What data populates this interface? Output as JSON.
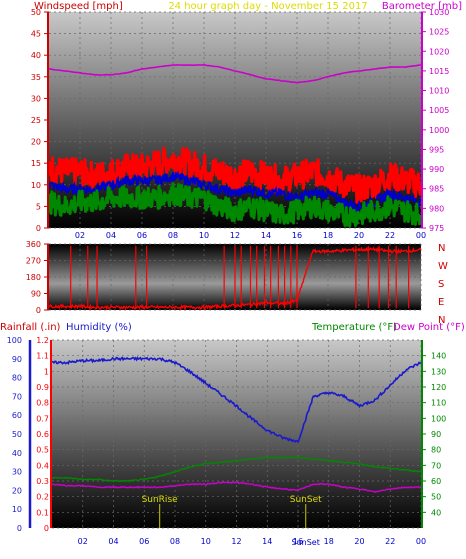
{
  "header": {
    "left_title": "Windspeed [mph]",
    "center_title": "24 hour graph day - November 15 2017",
    "right_title": "Barometer [mb]"
  },
  "colors": {
    "wind_axis": "#cc0000",
    "baro_axis": "#cc00cc",
    "hour_axis": "#0000cc",
    "title_center": "#dddd00",
    "humidity": "#1a1acc",
    "temperature": "#008800",
    "rain": "#ff0000",
    "plot_dark": "#000000",
    "plot_light": "#bdbdbd"
  },
  "chart_data": [
    {
      "id": "wind-barometer",
      "type": "line",
      "x": [
        0,
        1,
        2,
        3,
        4,
        5,
        6,
        7,
        8,
        9,
        10,
        11,
        12,
        13,
        14,
        15,
        16,
        17,
        18,
        19,
        20,
        21,
        22,
        23,
        24
      ],
      "xticks": [
        "02",
        "04",
        "06",
        "08",
        "10",
        "12",
        "14",
        "16",
        "18",
        "20",
        "22",
        "00"
      ],
      "y_left_label": "Windspeed [mph]",
      "y_left_ticks": [
        0,
        5,
        10,
        15,
        20,
        25,
        30,
        35,
        40,
        45,
        50
      ],
      "y_left_range": [
        0,
        50
      ],
      "y_right_label": "Barometer [mb]",
      "y_right_ticks": [
        975,
        980,
        985,
        990,
        995,
        1000,
        1005,
        1010,
        1015,
        1020,
        1025,
        1030
      ],
      "y_right_range": [
        975,
        1030
      ],
      "series": [
        {
          "key": "barometer",
          "axis": "right",
          "color": "#cc00cc",
          "values": [
            1015.5,
            1015,
            1014.5,
            1014,
            1014,
            1014.5,
            1015.5,
            1016,
            1016.5,
            1016.5,
            1016.5,
            1016,
            1015,
            1014,
            1013,
            1012.5,
            1012,
            1012.5,
            1013.5,
            1014.5,
            1015,
            1015.5,
            1016,
            1016,
            1016.5
          ]
        },
        {
          "key": "gust",
          "axis": "left",
          "color": "#ff0000",
          "values": [
            14,
            13,
            13,
            12,
            13,
            14,
            14,
            15,
            16,
            15,
            14,
            13,
            12,
            13,
            12,
            11,
            12,
            13,
            12,
            10,
            9,
            10,
            12,
            11,
            10
          ]
        },
        {
          "key": "wind_avg",
          "axis": "left",
          "color": "#0000cc",
          "values": [
            10,
            9,
            9,
            9,
            10,
            11,
            11,
            11,
            12,
            11,
            10,
            9,
            8,
            9,
            8,
            8,
            7,
            8,
            8,
            6,
            5,
            6,
            8,
            7,
            6
          ]
        },
        {
          "key": "wind_low",
          "axis": "left",
          "color": "#008800",
          "values": [
            6,
            5,
            6,
            6,
            7,
            7,
            7,
            7,
            8,
            7,
            7,
            5,
            4,
            5,
            4,
            3,
            4,
            5,
            4,
            3,
            3,
            4,
            5,
            4,
            3
          ]
        }
      ]
    },
    {
      "id": "wind-direction",
      "type": "line",
      "x": [
        0,
        1,
        2,
        3,
        4,
        5,
        6,
        7,
        8,
        9,
        10,
        11,
        12,
        13,
        14,
        15,
        16,
        17,
        18,
        19,
        20,
        21,
        22,
        23,
        24
      ],
      "xticks": [
        "02",
        "04",
        "06",
        "08",
        "10",
        "12",
        "14",
        "16",
        "18",
        "20",
        "22",
        "00"
      ],
      "y_ticks": [
        0,
        90,
        180,
        270,
        360
      ],
      "y_range": [
        0,
        360
      ],
      "compass": [
        "N",
        "W",
        "S",
        "E",
        "N"
      ],
      "series": [
        {
          "key": "direction",
          "color": "#ff0000",
          "values": [
            20,
            20,
            20,
            15,
            15,
            15,
            15,
            15,
            15,
            15,
            15,
            20,
            25,
            30,
            40,
            35,
            50,
            320,
            320,
            325,
            330,
            330,
            320,
            320,
            330
          ]
        }
      ]
    },
    {
      "id": "rain-humidity-temp",
      "type": "line",
      "x": [
        0,
        1,
        2,
        3,
        4,
        5,
        6,
        7,
        8,
        9,
        10,
        11,
        12,
        13,
        14,
        15,
        16,
        17,
        18,
        19,
        20,
        21,
        22,
        23,
        24
      ],
      "xticks": [
        "02",
        "04",
        "06",
        "08",
        "10",
        "12",
        "14",
        "16",
        "18",
        "20",
        "22",
        "00"
      ],
      "labels": {
        "rainfall": "Rainfall (.in)",
        "humidity": "Humidity (%)",
        "temperature": "Temperature (°F)",
        "dewpoint": "Dew Point (°F)"
      },
      "y_rain_ticks": [
        0,
        0.1,
        0.2,
        0.3,
        0.4,
        0.5,
        0.6,
        0.7,
        0.8,
        0.9,
        1,
        1.1,
        1.2
      ],
      "y_rain_range": [
        0,
        1.2
      ],
      "y_hum_ticks": [
        0,
        10,
        20,
        30,
        40,
        50,
        60,
        70,
        80,
        90,
        100
      ],
      "y_hum_range": [
        0,
        100
      ],
      "y_temp_ticks": [
        40,
        50,
        60,
        70,
        80,
        90,
        100,
        110,
        120,
        130,
        140
      ],
      "y_temp_range": [
        30,
        150
      ],
      "annotations": [
        {
          "key": "sunrise",
          "label": "SunRise",
          "x": 7
        },
        {
          "key": "sunset",
          "label": "SunSet",
          "x": 16.5
        },
        {
          "key": "sunset_axis",
          "label": "SunSet",
          "x": 16.5
        }
      ],
      "series": [
        {
          "key": "humidity",
          "axis": "hum",
          "color": "#1a1acc",
          "values": [
            88,
            88,
            89,
            89,
            90,
            90,
            90,
            90,
            88,
            83,
            77,
            71,
            65,
            58,
            52,
            48,
            46,
            70,
            72,
            70,
            65,
            68,
            76,
            84,
            88
          ]
        },
        {
          "key": "temperature",
          "axis": "temp",
          "color": "#008800",
          "values": [
            62,
            62,
            61,
            61,
            60,
            60,
            61,
            63,
            66,
            69,
            71,
            72,
            73,
            74,
            75,
            75,
            75,
            74,
            73,
            72,
            71,
            69,
            68,
            67,
            66
          ]
        },
        {
          "key": "dewpoint",
          "axis": "temp",
          "color": "#cc00cc",
          "values": [
            58,
            57,
            57,
            56,
            56,
            56,
            56,
            56,
            57,
            58,
            58,
            59,
            59,
            58,
            56,
            55,
            54,
            58,
            58,
            56,
            55,
            53,
            55,
            56,
            56
          ]
        }
      ]
    }
  ]
}
